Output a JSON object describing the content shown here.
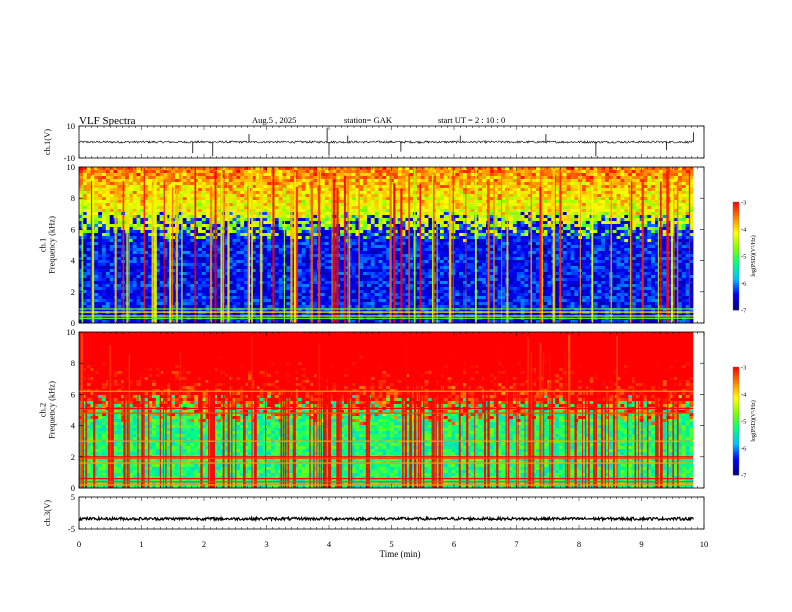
{
  "header": {
    "title": "VLF  Spectra",
    "date": "Aug.5   , 2025",
    "station": "station= GAK",
    "start": "start  UT  =    2  : 10 : 0"
  },
  "colors": {
    "trace": "#000000",
    "axis": "#000000",
    "gap": "#ffffff",
    "colormap": [
      "#000000",
      "#00007a",
      "#0000ff",
      "#00c0ff",
      "#00ff80",
      "#80ff00",
      "#ffff00",
      "#ff7f00",
      "#ff0000",
      "#ffffff"
    ]
  },
  "chart_data": [
    {
      "type": "line",
      "panel": "ch1-waveform",
      "ylabel": "ch.1(V)",
      "ylim": [
        -10,
        10
      ],
      "y_ticks": [
        "10",
        "-10"
      ],
      "x_range": [
        0,
        10
      ],
      "baseline": 0,
      "data_end_min": 9.83,
      "spikes": [
        {
          "t": 1.82,
          "v": -7
        },
        {
          "t": 2.14,
          "v": -9
        },
        {
          "t": 2.72,
          "v": 5
        },
        {
          "t": 3.97,
          "v": 9
        },
        {
          "t": 4.0,
          "v": -8
        },
        {
          "t": 4.3,
          "v": 4
        },
        {
          "t": 5.15,
          "v": -6
        },
        {
          "t": 6.1,
          "v": 4
        },
        {
          "t": 7.47,
          "v": 5
        },
        {
          "t": 8.27,
          "v": -9
        },
        {
          "t": 9.4,
          "v": -5
        },
        {
          "t": 9.83,
          "v": 6
        }
      ]
    },
    {
      "type": "heatmap",
      "panel": "ch1-spectrogram",
      "ylabel": "ch.1\nFrequency  (kHz)",
      "ylim": [
        0,
        10
      ],
      "y_ticks": [
        "0",
        "2",
        "4",
        "6",
        "8",
        "10"
      ],
      "x_range": [
        0,
        10
      ],
      "data_end_min": 9.83,
      "colorbar": {
        "label": "log(PSD)(V²/Hz)",
        "min": -7,
        "max": -3,
        "ticks": [
          "-3",
          "-4",
          "-5",
          "-6",
          "-7"
        ]
      },
      "background_level": -6.4,
      "noise_edge_khz": 6.2,
      "lines_khz": [
        0.3,
        0.45,
        0.7,
        0.9
      ],
      "broadband_bursts": 90
    },
    {
      "type": "heatmap",
      "panel": "ch2-spectrogram",
      "ylabel": "ch.2\nFrequency  (kHz)",
      "ylim": [
        0,
        10
      ],
      "y_ticks": [
        "0",
        "2",
        "4",
        "6",
        "8",
        "10"
      ],
      "x_range": [
        0,
        10
      ],
      "data_end_min": 9.83,
      "colorbar": {
        "label": "log(PSD)(V²/Hz)",
        "min": -7,
        "max": -3,
        "ticks": [
          "-3",
          "-4",
          "-5",
          "-6",
          "-7"
        ]
      },
      "background_level": -5.2,
      "noise_edge_khz": 5.0,
      "lines_khz": [
        0.2,
        0.4,
        0.6,
        1.6,
        1.9,
        2.0,
        3.0,
        4.8,
        5.1,
        6.2
      ],
      "broadband_bursts": 140
    },
    {
      "type": "line",
      "panel": "ch3-waveform",
      "ylabel": "ch.3(V)",
      "ylim": [
        -5,
        5
      ],
      "y_ticks": [
        "5",
        "-5"
      ],
      "x_range": [
        0,
        10
      ],
      "baseline": -1.8,
      "data_end_min": 9.83
    }
  ],
  "xaxis": {
    "label": "Time  (min)",
    "ticks": [
      "0",
      "1",
      "2",
      "3",
      "4",
      "5",
      "6",
      "7",
      "8",
      "9",
      "10"
    ]
  }
}
